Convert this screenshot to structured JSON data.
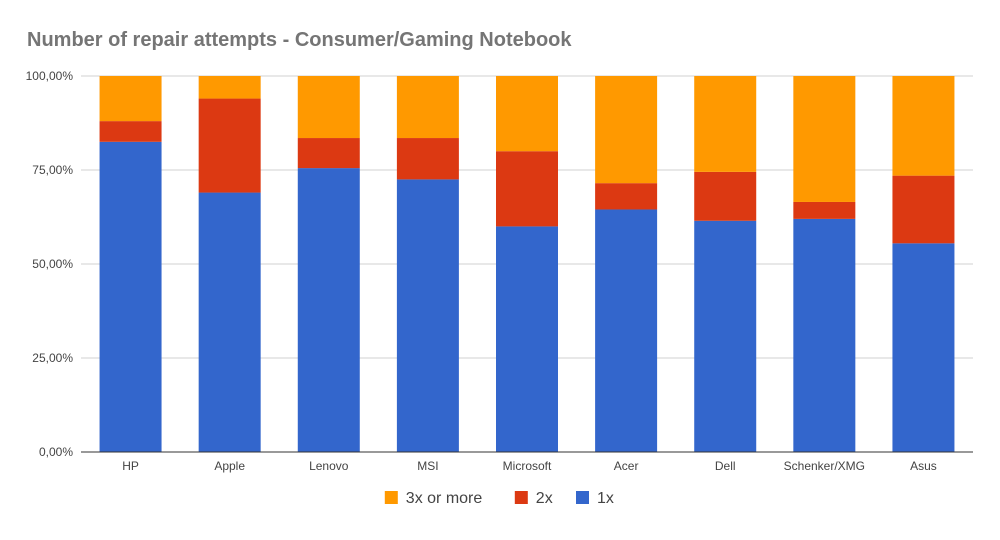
{
  "chart_data": {
    "type": "bar",
    "stacked": true,
    "percent_stacked": true,
    "title": "Number of repair attempts - Consumer/Gaming Notebook",
    "xlabel": "",
    "ylabel": "",
    "ylim": [
      0,
      100
    ],
    "y_ticks": [
      "0,00%",
      "25,00%",
      "50,00%",
      "75,00%",
      "100,00%"
    ],
    "grid": true,
    "legend_position": "bottom",
    "categories": [
      "HP",
      "Apple",
      "Lenovo",
      "MSI",
      "Microsoft",
      "Acer",
      "Dell",
      "Schenker/XMG",
      "Asus"
    ],
    "series": [
      {
        "name": "1x",
        "color": "#3366cc",
        "values": [
          82.5,
          69,
          75.5,
          72.5,
          60,
          64.5,
          61.5,
          62,
          55.5
        ]
      },
      {
        "name": "2x",
        "color": "#dc3912",
        "values": [
          5.5,
          25,
          8,
          11,
          20,
          7,
          13,
          4.5,
          18
        ]
      },
      {
        "name": "3x or more",
        "color": "#ff9900",
        "values": [
          12,
          6,
          16.5,
          16.5,
          20,
          28.5,
          25.5,
          33.5,
          26.5
        ]
      }
    ],
    "legend_order": [
      "3x or more",
      "2x",
      "1x"
    ]
  }
}
